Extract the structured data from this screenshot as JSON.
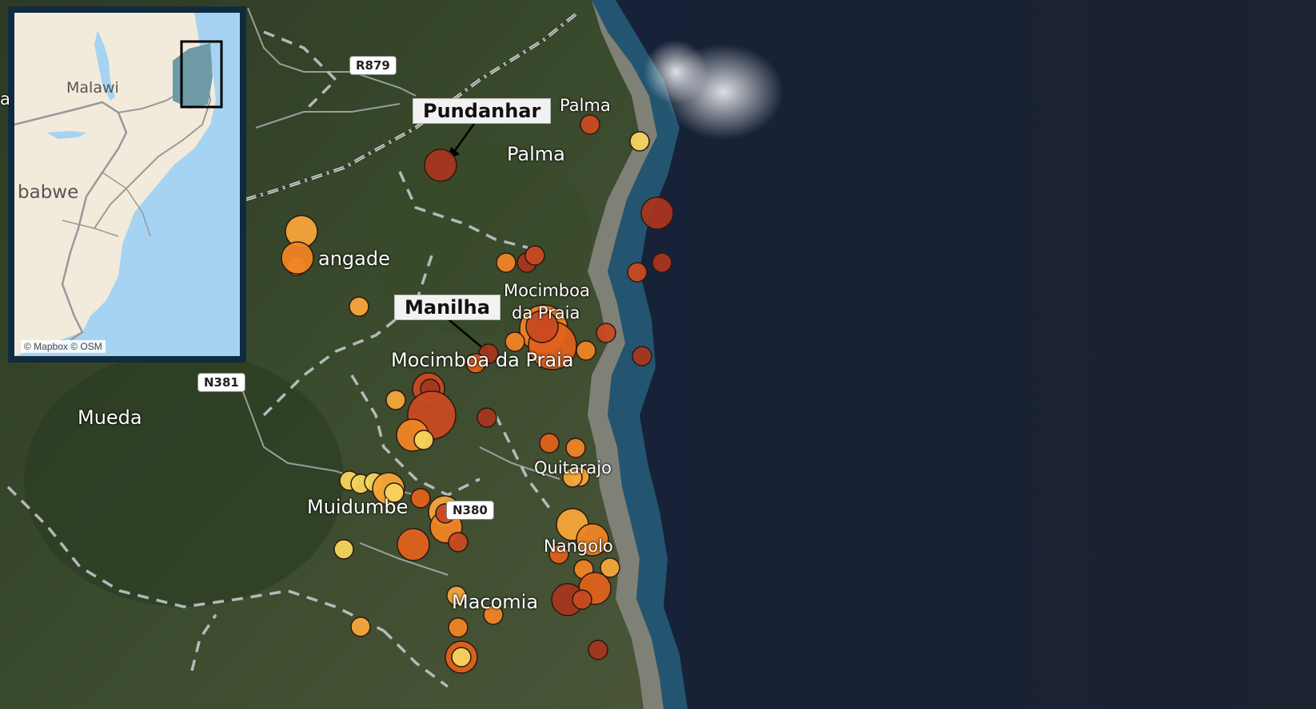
{
  "map": {
    "places": [
      {
        "id": "palma-north",
        "label": "Palma"
      },
      {
        "id": "palma",
        "label": "Palma"
      },
      {
        "id": "nangade",
        "label": "angade"
      },
      {
        "id": "mocimboa-top-1",
        "label": "Mocimboa"
      },
      {
        "id": "mocimboa-top-2",
        "label": "da Praia"
      },
      {
        "id": "mocimboa",
        "label": "Mocimboa da Praia"
      },
      {
        "id": "mueda",
        "label": "Mueda"
      },
      {
        "id": "quitarajo",
        "label": "Quitarajo"
      },
      {
        "id": "muidumbe",
        "label": "Muidumbe"
      },
      {
        "id": "nangolo",
        "label": "Nangolo"
      },
      {
        "id": "macomia",
        "label": "Macomia"
      }
    ],
    "roads": [
      {
        "id": "r879",
        "label": "R879"
      },
      {
        "id": "n381",
        "label": "N381"
      },
      {
        "id": "n380",
        "label": "N380"
      }
    ],
    "callouts": [
      {
        "id": "pundanhar",
        "label": "Pundanhar"
      },
      {
        "id": "manilha",
        "label": "Manilha"
      }
    ],
    "event_colors": [
      "#f5d45e",
      "#f7a53a",
      "#ef8425",
      "#e0611c",
      "#c84a22",
      "#a8361f"
    ],
    "events": [
      {
        "c": 5,
        "s": 2
      },
      {
        "c": 0,
        "s": 1
      },
      {
        "c": 4,
        "s": 1
      },
      {
        "c": 5,
        "s": 2
      },
      {
        "c": 5,
        "s": 1
      },
      {
        "c": 4,
        "s": 1
      },
      {
        "c": 1,
        "s": 2
      },
      {
        "c": 1,
        "s": 1
      },
      {
        "c": 2,
        "s": 2
      },
      {
        "c": 1,
        "s": 1
      },
      {
        "c": 2,
        "s": 1
      },
      {
        "c": 5,
        "s": 1
      },
      {
        "c": 4,
        "s": 1
      },
      {
        "c": 2,
        "s": 3
      },
      {
        "c": 3,
        "s": 3
      },
      {
        "c": 4,
        "s": 2
      },
      {
        "c": 5,
        "s": 1
      },
      {
        "c": 3,
        "s": 1
      },
      {
        "c": 2,
        "s": 1
      },
      {
        "c": 2,
        "s": 1
      },
      {
        "c": 4,
        "s": 1
      },
      {
        "c": 4,
        "s": 2
      },
      {
        "c": 5,
        "s": 1
      },
      {
        "c": 4,
        "s": 3
      },
      {
        "c": 5,
        "s": 1
      },
      {
        "c": 1,
        "s": 1
      },
      {
        "c": 2,
        "s": 2
      },
      {
        "c": 0,
        "s": 1
      },
      {
        "c": 3,
        "s": 1
      },
      {
        "c": 5,
        "s": 1
      },
      {
        "c": 2,
        "s": 1
      },
      {
        "c": 1,
        "s": 1
      },
      {
        "c": 1,
        "s": 1
      },
      {
        "c": 0,
        "s": 1
      },
      {
        "c": 0,
        "s": 1
      },
      {
        "c": 0,
        "s": 1
      },
      {
        "c": 1,
        "s": 2
      },
      {
        "c": 0,
        "s": 1
      },
      {
        "c": 3,
        "s": 1
      },
      {
        "c": 1,
        "s": 2
      },
      {
        "c": 2,
        "s": 2
      },
      {
        "c": 4,
        "s": 1
      },
      {
        "c": 3,
        "s": 2
      },
      {
        "c": 4,
        "s": 1
      },
      {
        "c": 0,
        "s": 1
      },
      {
        "c": 1,
        "s": 2
      },
      {
        "c": 2,
        "s": 2
      },
      {
        "c": 3,
        "s": 1
      },
      {
        "c": 2,
        "s": 1
      },
      {
        "c": 1,
        "s": 1
      },
      {
        "c": 3,
        "s": 2
      },
      {
        "c": 5,
        "s": 2
      },
      {
        "c": 4,
        "s": 1
      },
      {
        "c": 1,
        "s": 1
      },
      {
        "c": 2,
        "s": 1
      },
      {
        "c": 1,
        "s": 1
      },
      {
        "c": 2,
        "s": 1
      },
      {
        "c": 3,
        "s": 2
      },
      {
        "c": 0,
        "s": 1
      },
      {
        "c": 5,
        "s": 1
      }
    ]
  },
  "inset": {
    "labels": {
      "malawi": "Malawi",
      "zimbabwe": "babwe",
      "left_edge": "a"
    },
    "colors": {
      "land": "#f2ebdc",
      "water": "#a6d3f2",
      "highlight": "#6e9aa6",
      "frame": "#102b40"
    },
    "attribution": "© Mapbox © OSM"
  }
}
